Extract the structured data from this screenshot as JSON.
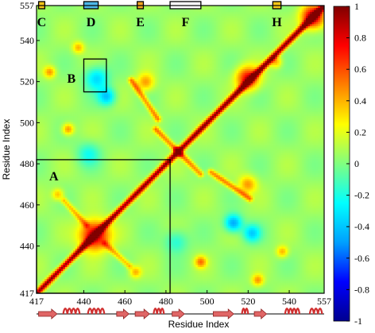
{
  "chart_data": {
    "type": "heatmap",
    "title": "",
    "xlabel": "Residue Index",
    "ylabel": "Residue Index",
    "x_range": [
      417,
      557
    ],
    "y_range": [
      417,
      557
    ],
    "x_ticks": [
      "417",
      "440",
      "460",
      "480",
      "500",
      "520",
      "540",
      "557"
    ],
    "y_ticks": [
      "417",
      "440",
      "460",
      "480",
      "500",
      "520",
      "540",
      "557"
    ],
    "colorbar": {
      "min": -1,
      "max": 1,
      "ticks": [
        "1",
        "0.8",
        "0.6",
        "0.4",
        "0.2",
        "0",
        "-0.2",
        "-0.4",
        "-0.6",
        "-0.8",
        "-1"
      ],
      "colors": [
        "#00008f",
        "#0000ff",
        "#00a0ff",
        "#00ffff",
        "#80ff80",
        "#ffff00",
        "#ff8000",
        "#ff0000",
        "#800000"
      ]
    },
    "diagonal_value": 1,
    "background_value": 0.05,
    "boxes": [
      {
        "label": "A",
        "x": [
          417,
          482
        ],
        "y": [
          417,
          482
        ]
      },
      {
        "label": "B",
        "x": [
          440,
          451
        ],
        "y": [
          515,
          531
        ]
      }
    ],
    "top_markers": [
      {
        "label": "C",
        "x": [
          418,
          421
        ],
        "color": "#f5c518"
      },
      {
        "label": "D",
        "x": [
          440,
          447
        ],
        "color": "#4db8e8"
      },
      {
        "label": "E",
        "x": [
          466,
          469
        ],
        "color": "#f5a623"
      },
      {
        "label": "F",
        "x": [
          482,
          497
        ],
        "color": "#ffffff"
      },
      {
        "label": "H",
        "x": [
          532,
          536
        ],
        "color": "#f5c518"
      }
    ],
    "features": [
      {
        "x": 445,
        "y": 445,
        "value": 0.9,
        "spread": 5
      },
      {
        "x": 552,
        "y": 552,
        "value": 0.9,
        "spread": 4
      },
      {
        "x": 520,
        "y": 522,
        "value": 0.75,
        "spread": 4
      },
      {
        "x": 446,
        "y": 522,
        "value": -0.35,
        "spread": 4
      },
      {
        "x": 522,
        "y": 446,
        "value": -0.35,
        "spread": 3
      },
      {
        "x": 513,
        "y": 451,
        "value": -0.5,
        "spread": 3
      },
      {
        "x": 451,
        "y": 513,
        "value": -0.4,
        "spread": 3
      },
      {
        "x": 442,
        "y": 485,
        "value": -0.2,
        "spread": 4
      },
      {
        "x": 485,
        "y": 442,
        "value": -0.2,
        "spread": 4
      },
      {
        "x": 470,
        "y": 520,
        "value": 0.45,
        "spread": 3
      },
      {
        "x": 520,
        "y": 470,
        "value": 0.45,
        "spread": 3
      },
      {
        "x": 423,
        "y": 525,
        "value": 0.45,
        "spread": 2
      },
      {
        "x": 525,
        "y": 423,
        "value": 0.45,
        "spread": 2
      },
      {
        "x": 432,
        "y": 497,
        "value": 0.5,
        "spread": 2
      },
      {
        "x": 497,
        "y": 432,
        "value": 0.5,
        "spread": 2
      },
      {
        "x": 427,
        "y": 465,
        "value": 0.4,
        "spread": 2
      },
      {
        "x": 465,
        "y": 427,
        "value": 0.4,
        "spread": 2
      },
      {
        "x": 537,
        "y": 437,
        "value": 0.4,
        "spread": 2
      },
      {
        "x": 437,
        "y": 537,
        "value": 0.4,
        "spread": 2
      },
      {
        "x": 534,
        "y": 530,
        "value": 0.4,
        "spread": 2
      }
    ],
    "bands": [
      {
        "x": [
          463,
          476
        ],
        "y": [
          521,
          502
        ],
        "value": 0.5
      },
      {
        "x": [
          502,
          521
        ],
        "y": [
          476,
          463
        ],
        "value": 0.5
      },
      {
        "x": [
          485,
          497
        ],
        "y": [
          487,
          475
        ],
        "value": 0.5
      },
      {
        "x": [
          487,
          475
        ],
        "y": [
          485,
          497
        ],
        "value": 0.5
      },
      {
        "x": [
          450,
          462
        ],
        "y": [
          441,
          430
        ],
        "value": 0.4
      },
      {
        "x": [
          441,
          430
        ],
        "y": [
          450,
          462
        ],
        "value": 0.4
      }
    ],
    "secondary_structure": [
      {
        "type": "strand",
        "x": [
          418,
          427
        ]
      },
      {
        "type": "helix",
        "x": [
          430,
          438
        ]
      },
      {
        "type": "helix",
        "x": [
          442,
          450
        ]
      },
      {
        "type": "strand",
        "x": [
          456,
          462
        ]
      },
      {
        "type": "strand",
        "x": [
          465,
          472
        ]
      },
      {
        "type": "helix",
        "x": [
          474,
          479
        ]
      },
      {
        "type": "strand",
        "x": [
          483,
          489
        ]
      },
      {
        "type": "strand",
        "x": [
          503,
          513
        ]
      },
      {
        "type": "helix",
        "x": [
          517,
          520
        ]
      },
      {
        "type": "strand",
        "x": [
          523,
          529
        ]
      },
      {
        "type": "helix",
        "x": [
          538,
          545
        ]
      },
      {
        "type": "helix",
        "x": [
          550,
          556
        ]
      }
    ]
  }
}
